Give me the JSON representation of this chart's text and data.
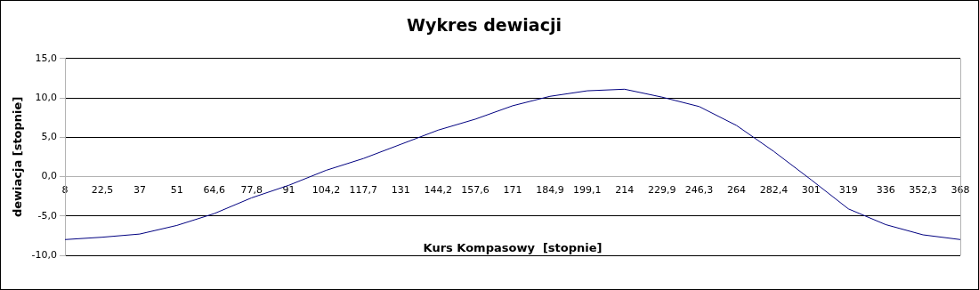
{
  "chart_data": {
    "type": "line",
    "title": "Wykres dewiacji",
    "xlabel": "Kurs Kompasowy  [stopnie]",
    "ylabel": "dewiacja [stopnie]",
    "categories": [
      "8",
      "22,5",
      "37",
      "51",
      "64,6",
      "77,8",
      "91",
      "104,2",
      "117,7",
      "131",
      "144,2",
      "157,6",
      "171",
      "184,9",
      "199,1",
      "214",
      "229,9",
      "246,3",
      "264",
      "282,4",
      "301",
      "319",
      "336",
      "352,3",
      "368"
    ],
    "series": [
      {
        "color": "#000080",
        "values": [
          -8.0,
          -7.7,
          -7.3,
          -6.2,
          -4.7,
          -2.7,
          -1.1,
          0.8,
          2.3,
          4.1,
          5.9,
          7.3,
          9.0,
          10.2,
          10.9,
          11.1,
          10.1,
          8.9,
          6.5,
          3.2,
          -0.4,
          -4.1,
          -6.1,
          -7.4,
          -8.0
        ]
      }
    ],
    "ylim": [
      -10,
      15
    ],
    "yticks": [
      {
        "value": -10,
        "label": "-10,0"
      },
      {
        "value": -5,
        "label": "-5,0"
      },
      {
        "value": 0,
        "label": "0,0"
      },
      {
        "value": 5,
        "label": "5,0"
      },
      {
        "value": 10,
        "label": "10,0"
      },
      {
        "value": 15,
        "label": "15,0"
      }
    ],
    "grid": "y",
    "legend": false,
    "marker": "none",
    "line_style": "solid"
  }
}
